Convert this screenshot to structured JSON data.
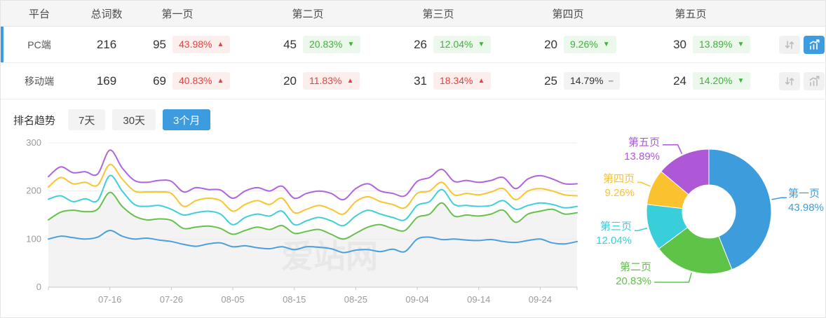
{
  "accent_color": "#3d9be0",
  "table": {
    "columns": [
      "平台",
      "总词数",
      "第一页",
      "第二页",
      "第三页",
      "第四页",
      "第五页"
    ],
    "rows": [
      {
        "platform": "PC端",
        "total": "216",
        "selected": true,
        "pages": [
          {
            "count": "95",
            "percent": "43.98%",
            "trend": "up"
          },
          {
            "count": "45",
            "percent": "20.83%",
            "trend": "down"
          },
          {
            "count": "26",
            "percent": "12.04%",
            "trend": "down"
          },
          {
            "count": "20",
            "percent": "9.26%",
            "trend": "down"
          },
          {
            "count": "30",
            "percent": "13.89%",
            "trend": "down"
          }
        ],
        "action_icons": [
          "sort-updown-icon",
          "trend-chart-icon"
        ],
        "trend_chart_active": true
      },
      {
        "platform": "移动端",
        "total": "169",
        "selected": false,
        "pages": [
          {
            "count": "69",
            "percent": "40.83%",
            "trend": "up"
          },
          {
            "count": "20",
            "percent": "11.83%",
            "trend": "up"
          },
          {
            "count": "31",
            "percent": "18.34%",
            "trend": "up"
          },
          {
            "count": "25",
            "percent": "14.79%",
            "trend": "flat"
          },
          {
            "count": "24",
            "percent": "14.20%",
            "trend": "down"
          }
        ],
        "action_icons": [
          "sort-updown-icon",
          "trend-chart-icon"
        ],
        "trend_chart_active": false
      }
    ]
  },
  "trend_section": {
    "title": "排名趋势",
    "tabs": [
      {
        "label": "7天",
        "active": false
      },
      {
        "label": "30天",
        "active": false
      },
      {
        "label": "3个月",
        "active": true
      }
    ],
    "watermark": "爱站网"
  },
  "chart_data": [
    {
      "type": "line",
      "title": "排名趋势 3个月",
      "grid": true,
      "legend": "none",
      "ylim": [
        0,
        300
      ],
      "yticks": [
        0,
        100,
        200,
        300
      ],
      "x_range_days": [
        0,
        86
      ],
      "sample_step_days": 2,
      "x_tick_days": [
        10,
        20,
        30,
        40,
        50,
        60,
        70,
        80
      ],
      "x_tick_labels": [
        "07-16",
        "07-26",
        "08-05",
        "08-15",
        "08-25",
        "09-04",
        "09-14",
        "09-24"
      ],
      "series": [
        {
          "name": "第一页",
          "color": "#4aa0de",
          "values": [
            100,
            106,
            103,
            100,
            104,
            118,
            106,
            100,
            102,
            98,
            95,
            89,
            85,
            90,
            92,
            84,
            86,
            82,
            80,
            84,
            78,
            84,
            83,
            80,
            72,
            77,
            78,
            74,
            79,
            74,
            100,
            104,
            99,
            100,
            98,
            97,
            99,
            95,
            93,
            97,
            100,
            92,
            90,
            95
          ]
        },
        {
          "name": "第二页",
          "color": "#68c14c",
          "fill": "#f3f3f3",
          "values": [
            140,
            156,
            160,
            157,
            162,
            197,
            168,
            148,
            140,
            142,
            139,
            122,
            125,
            127,
            122,
            110,
            118,
            125,
            120,
            128,
            112,
            116,
            120,
            110,
            100,
            112,
            125,
            130,
            122,
            118,
            145,
            152,
            175,
            148,
            150,
            148,
            152,
            160,
            135,
            152,
            158,
            162,
            152,
            155
          ]
        },
        {
          "name": "第三页",
          "color": "#3ecfda",
          "values": [
            183,
            190,
            178,
            184,
            180,
            232,
            200,
            172,
            168,
            170,
            162,
            150,
            155,
            158,
            152,
            130,
            145,
            152,
            148,
            158,
            130,
            138,
            145,
            138,
            128,
            148,
            160,
            152,
            145,
            140,
            170,
            178,
            203,
            172,
            170,
            168,
            170,
            180,
            162,
            170,
            175,
            172,
            165,
            168
          ]
        },
        {
          "name": "第四页",
          "color": "#fac42e",
          "values": [
            208,
            228,
            215,
            218,
            212,
            255,
            225,
            200,
            198,
            198,
            195,
            168,
            180,
            185,
            180,
            158,
            172,
            180,
            172,
            185,
            155,
            162,
            170,
            162,
            152,
            178,
            188,
            178,
            172,
            165,
            195,
            200,
            218,
            192,
            195,
            192,
            198,
            205,
            182,
            200,
            205,
            200,
            192,
            190
          ]
        },
        {
          "name": "第五页",
          "color": "#b164db",
          "values": [
            230,
            250,
            238,
            240,
            235,
            285,
            248,
            222,
            218,
            222,
            220,
            198,
            207,
            203,
            202,
            185,
            200,
            207,
            200,
            210,
            185,
            195,
            200,
            195,
            182,
            205,
            215,
            200,
            195,
            190,
            220,
            228,
            245,
            220,
            222,
            218,
            222,
            228,
            205,
            225,
            232,
            225,
            215,
            215
          ]
        }
      ]
    },
    {
      "type": "pie",
      "donut": true,
      "labels": [
        "第一页",
        "第二页",
        "第三页",
        "第四页",
        "第五页"
      ],
      "values": [
        43.98,
        20.83,
        12.04,
        9.26,
        13.89
      ],
      "unit": "%",
      "colors": [
        "#3d9cdb",
        "#5ec447",
        "#38cfda",
        "#fbc12e",
        "#ae58d8"
      ]
    }
  ]
}
